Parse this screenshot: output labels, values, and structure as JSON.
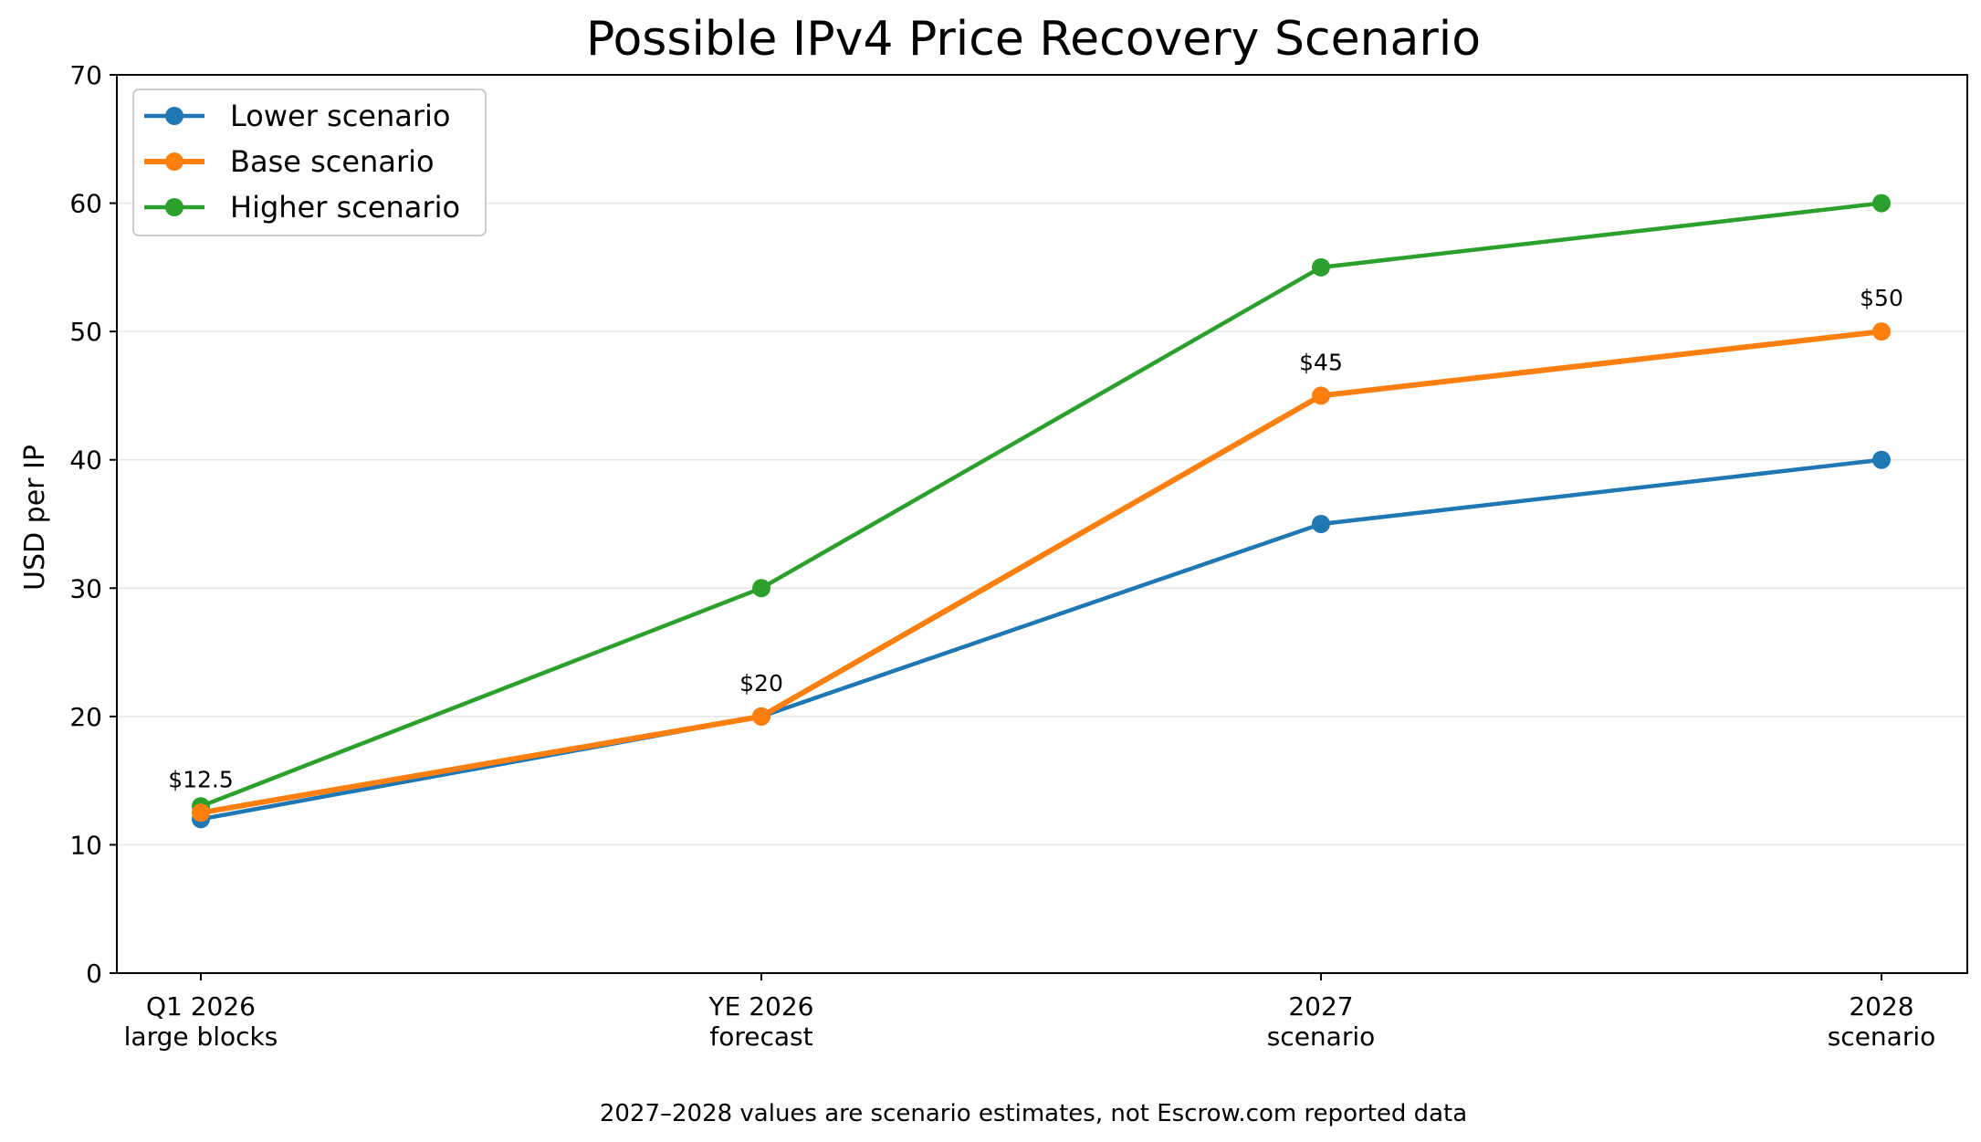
{
  "chart_data": {
    "type": "line",
    "title": "Possible IPv4 Price Recovery Scenario",
    "xlabel": "",
    "ylabel": "USD per IP",
    "categories": [
      [
        "Q1 2026",
        "large blocks"
      ],
      [
        "YE 2026",
        "forecast"
      ],
      [
        "2027",
        "scenario"
      ],
      [
        "2028",
        "scenario"
      ]
    ],
    "ylim": [
      0,
      70
    ],
    "yticks": [
      0,
      10,
      20,
      30,
      40,
      50,
      60,
      70
    ],
    "grid": "horizontal",
    "legend_position": "top-left",
    "series": [
      {
        "name": "Lower scenario",
        "color": "#1f77b4",
        "values": [
          12,
          20,
          35,
          40
        ]
      },
      {
        "name": "Base scenario",
        "color": "#ff7f0e",
        "values": [
          12.5,
          20,
          45,
          50
        ]
      },
      {
        "name": "Higher scenario",
        "color": "#2ca02c",
        "values": [
          13,
          30,
          55,
          60
        ]
      }
    ],
    "annotations": [
      "$12.5",
      "$20",
      "$45",
      "$50"
    ],
    "footnote": "2027–2028 values are scenario estimates, not Escrow.com reported data"
  }
}
